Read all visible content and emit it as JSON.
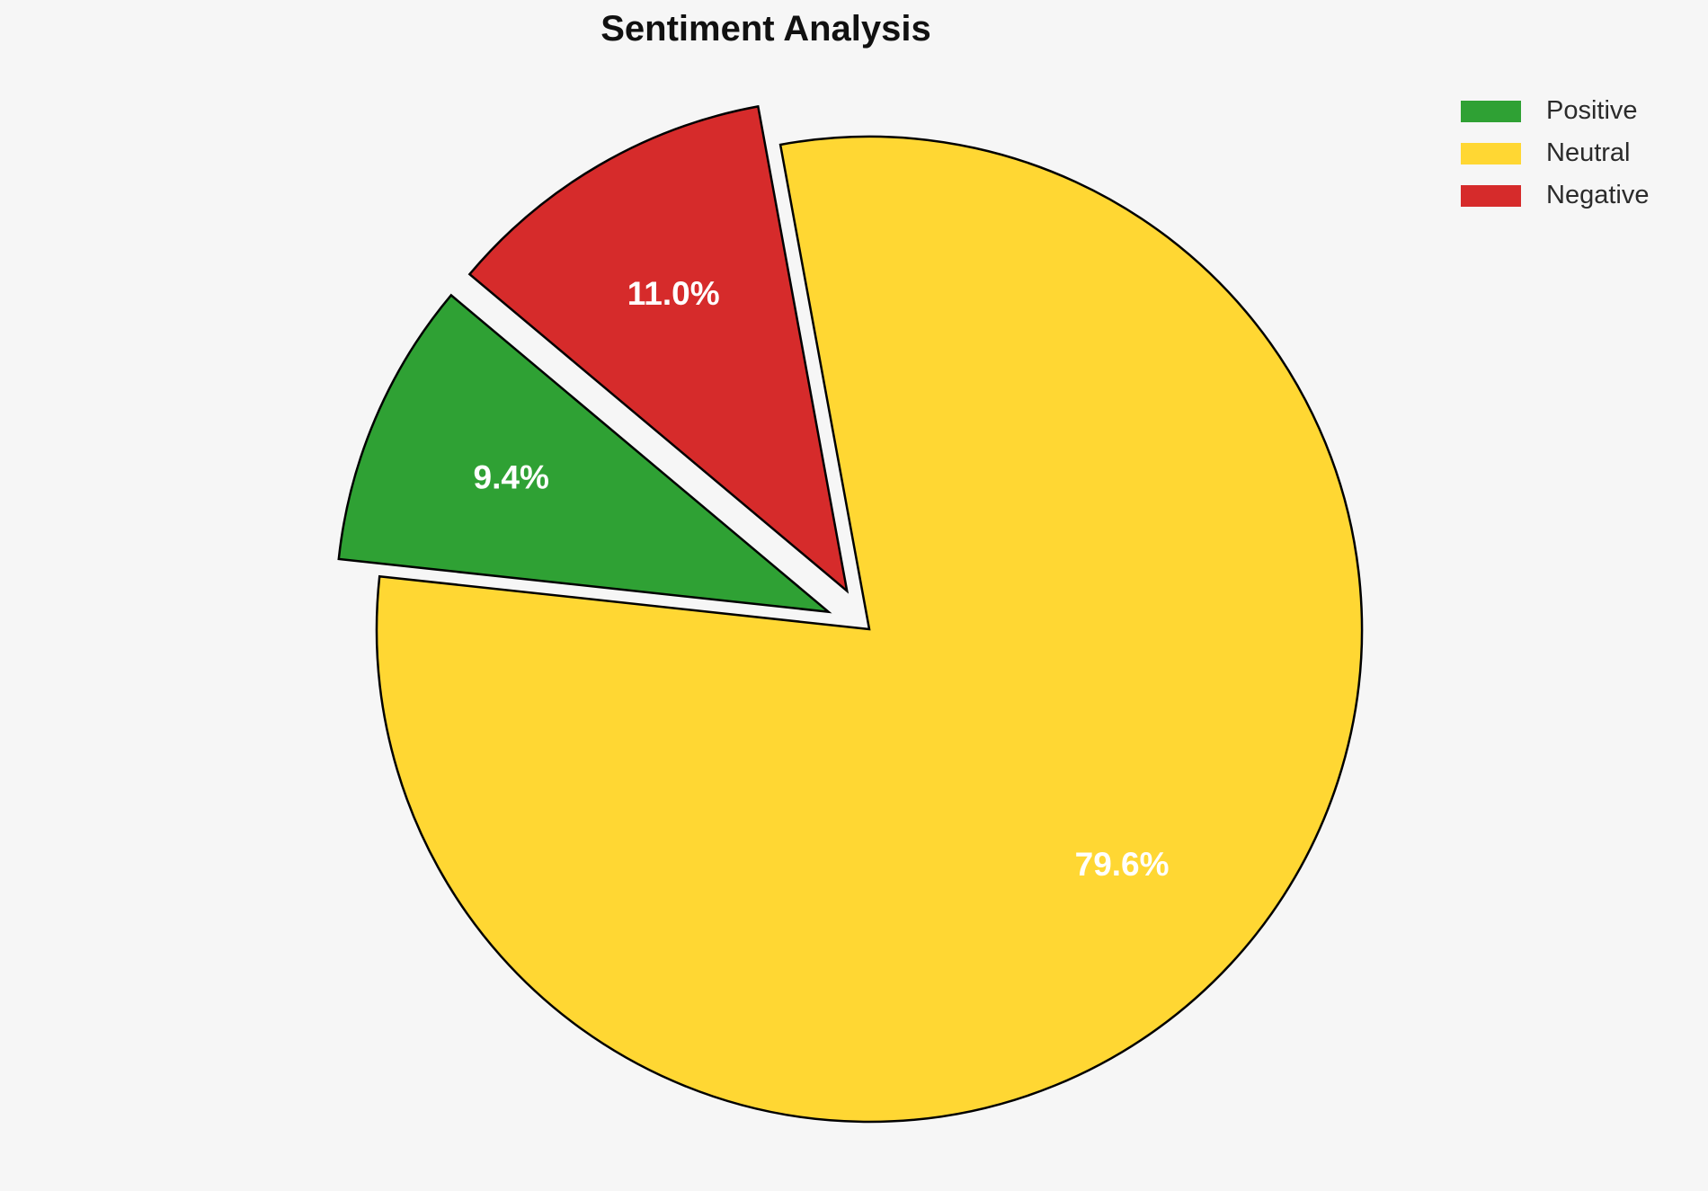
{
  "page": {
    "background_color": "#f6f6f6"
  },
  "chart_data": {
    "type": "pie",
    "title": "Sentiment Analysis",
    "categories": [
      "Positive",
      "Neutral",
      "Negative"
    ],
    "values": [
      9.4,
      79.6,
      11.0
    ],
    "slices": [
      {
        "label": "Positive",
        "value": 9.4,
        "pct_label": "9.4%",
        "color": "#2FA134",
        "explode": 0.09
      },
      {
        "label": "Neutral",
        "value": 79.6,
        "pct_label": "79.6%",
        "color": "#FFD733",
        "explode": 0
      },
      {
        "label": "Negative",
        "value": 11.0,
        "pct_label": "11.0%",
        "color": "#D62B2B",
        "explode": 0.09
      }
    ],
    "legend": {
      "position": "upper right",
      "entries": [
        "Positive",
        "Neutral",
        "Negative"
      ]
    },
    "layout": {
      "start_angle": 140,
      "counterclockwise": true,
      "pct_distance": 0.7,
      "edge_color": "#000000",
      "label_color": "#ffffff",
      "legend_frame": false
    }
  }
}
